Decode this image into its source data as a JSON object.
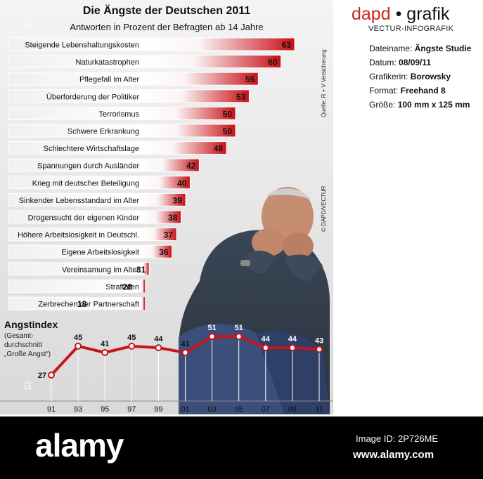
{
  "header": {
    "title": "Die Ängste der Deutschen 2011",
    "subtitle": "Antworten in Prozent der Befragten ab 14 Jahre"
  },
  "side_notes": {
    "source": "Quelle: R + V Versicherung",
    "credit": "© DAPD/VECTUR"
  },
  "watermark": {
    "letter": "a",
    "word": "alamy"
  },
  "colors": {
    "bar_dark": "#c80f16",
    "bar_light": "#ffffff",
    "line": "#c8141c",
    "brand": "#cc2222"
  },
  "chart_data": [
    {
      "type": "bar",
      "orientation": "horizontal",
      "title": "Die Ängste der Deutschen 2011",
      "subtitle": "Antworten in Prozent der Befragten ab 14 Jahre",
      "categories": [
        "Steigende Lebenshaltungskosten",
        "Naturkatastrophen",
        "Pflegefall im Alter",
        "Überforderung der Politiker",
        "Terrorismus",
        "Schwere Erkrankung",
        "Schlechtere Wirtschaftslage",
        "Spannungen durch Ausländer",
        "Krieg mit deutscher Beteiligung",
        "Sinkender Lebensstandard im Alter",
        "Drogensucht der eigenen Kinder",
        "Höhere Arbeitslosigkeit in Deutschl.",
        "Eigene Arbeitslosigkeit",
        "Vereinsamung im Alter",
        "Straftaten",
        "Zerbrechen der Partnerschaft"
      ],
      "values": [
        63,
        60,
        55,
        53,
        50,
        50,
        48,
        42,
        40,
        39,
        38,
        37,
        36,
        31,
        28,
        18
      ],
      "xlim": [
        0,
        63
      ]
    },
    {
      "type": "line",
      "title": "Angstindex",
      "subtitle": "(Gesamt-\ndurchschnitt\n„Große Angst“)",
      "x": [
        "91",
        "93",
        "95",
        "97",
        "99",
        "01",
        "03",
        "05",
        "07",
        "09",
        "11"
      ],
      "values": [
        27,
        45,
        41,
        45,
        44,
        41,
        51,
        51,
        44,
        44,
        43
      ],
      "ylim": [
        20,
        55
      ]
    }
  ],
  "sidebar": {
    "brand_left": "dapd",
    "brand_dot": "•",
    "brand_right": "grafik",
    "tagline": "VECTUR-INFOGRAFIK",
    "meta": [
      {
        "label": "Dateiname:",
        "value": "Ängste Studie"
      },
      {
        "label": "Datum:",
        "value": "08/09/11"
      },
      {
        "label": "Grafikerin:",
        "value": "Borowsky"
      },
      {
        "label": "Format:",
        "value": "Freehand 8"
      },
      {
        "label": "Größe:",
        "value": "100 mm x 125 mm"
      }
    ]
  },
  "footer": {
    "logo": "alamy",
    "image_id": "Image ID: 2P726ME",
    "url": "www.alamy.com"
  }
}
